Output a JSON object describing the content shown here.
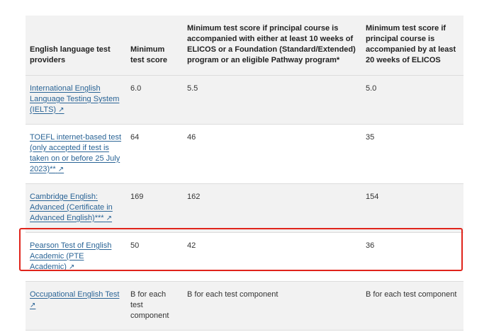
{
  "table": {
    "headers": [
      "English language test providers",
      "Minimum test score",
      "Minimum test score if principal course is accompanied with either at least 10 weeks of ELICOS or a Foundation (Standard/Extended) program or an eligible Pathway program*",
      "Minimum test score if principal course is accompanied by at least 20 weeks of ELICOS"
    ],
    "rows": [
      {
        "provider": "International English Language Testing System (IELTS)",
        "min": "6.0",
        "with10": "5.5",
        "with20": "5.0"
      },
      {
        "provider": "TOEFL internet-based test (only accepted if test is taken on or before 25 July 2023)**",
        "min": "64",
        "with10": "46",
        "with20": "35"
      },
      {
        "provider": "Cambridge English: Advanced (Certificate in Advanced English)***",
        "min": "169",
        "with10": "162",
        "with20": "154"
      },
      {
        "provider": "Pearson Test of English Academic (PTE Academic)",
        "min": "50",
        "with10": "42",
        "with20": "36"
      },
      {
        "provider": "Occupational English Test",
        "min": "B for each test component",
        "with10": "B for each test component",
        "with20": "B for each test component"
      }
    ]
  },
  "external_link_icon": "↗",
  "highlight": {
    "row_index": 3,
    "color": "#e0241b"
  }
}
